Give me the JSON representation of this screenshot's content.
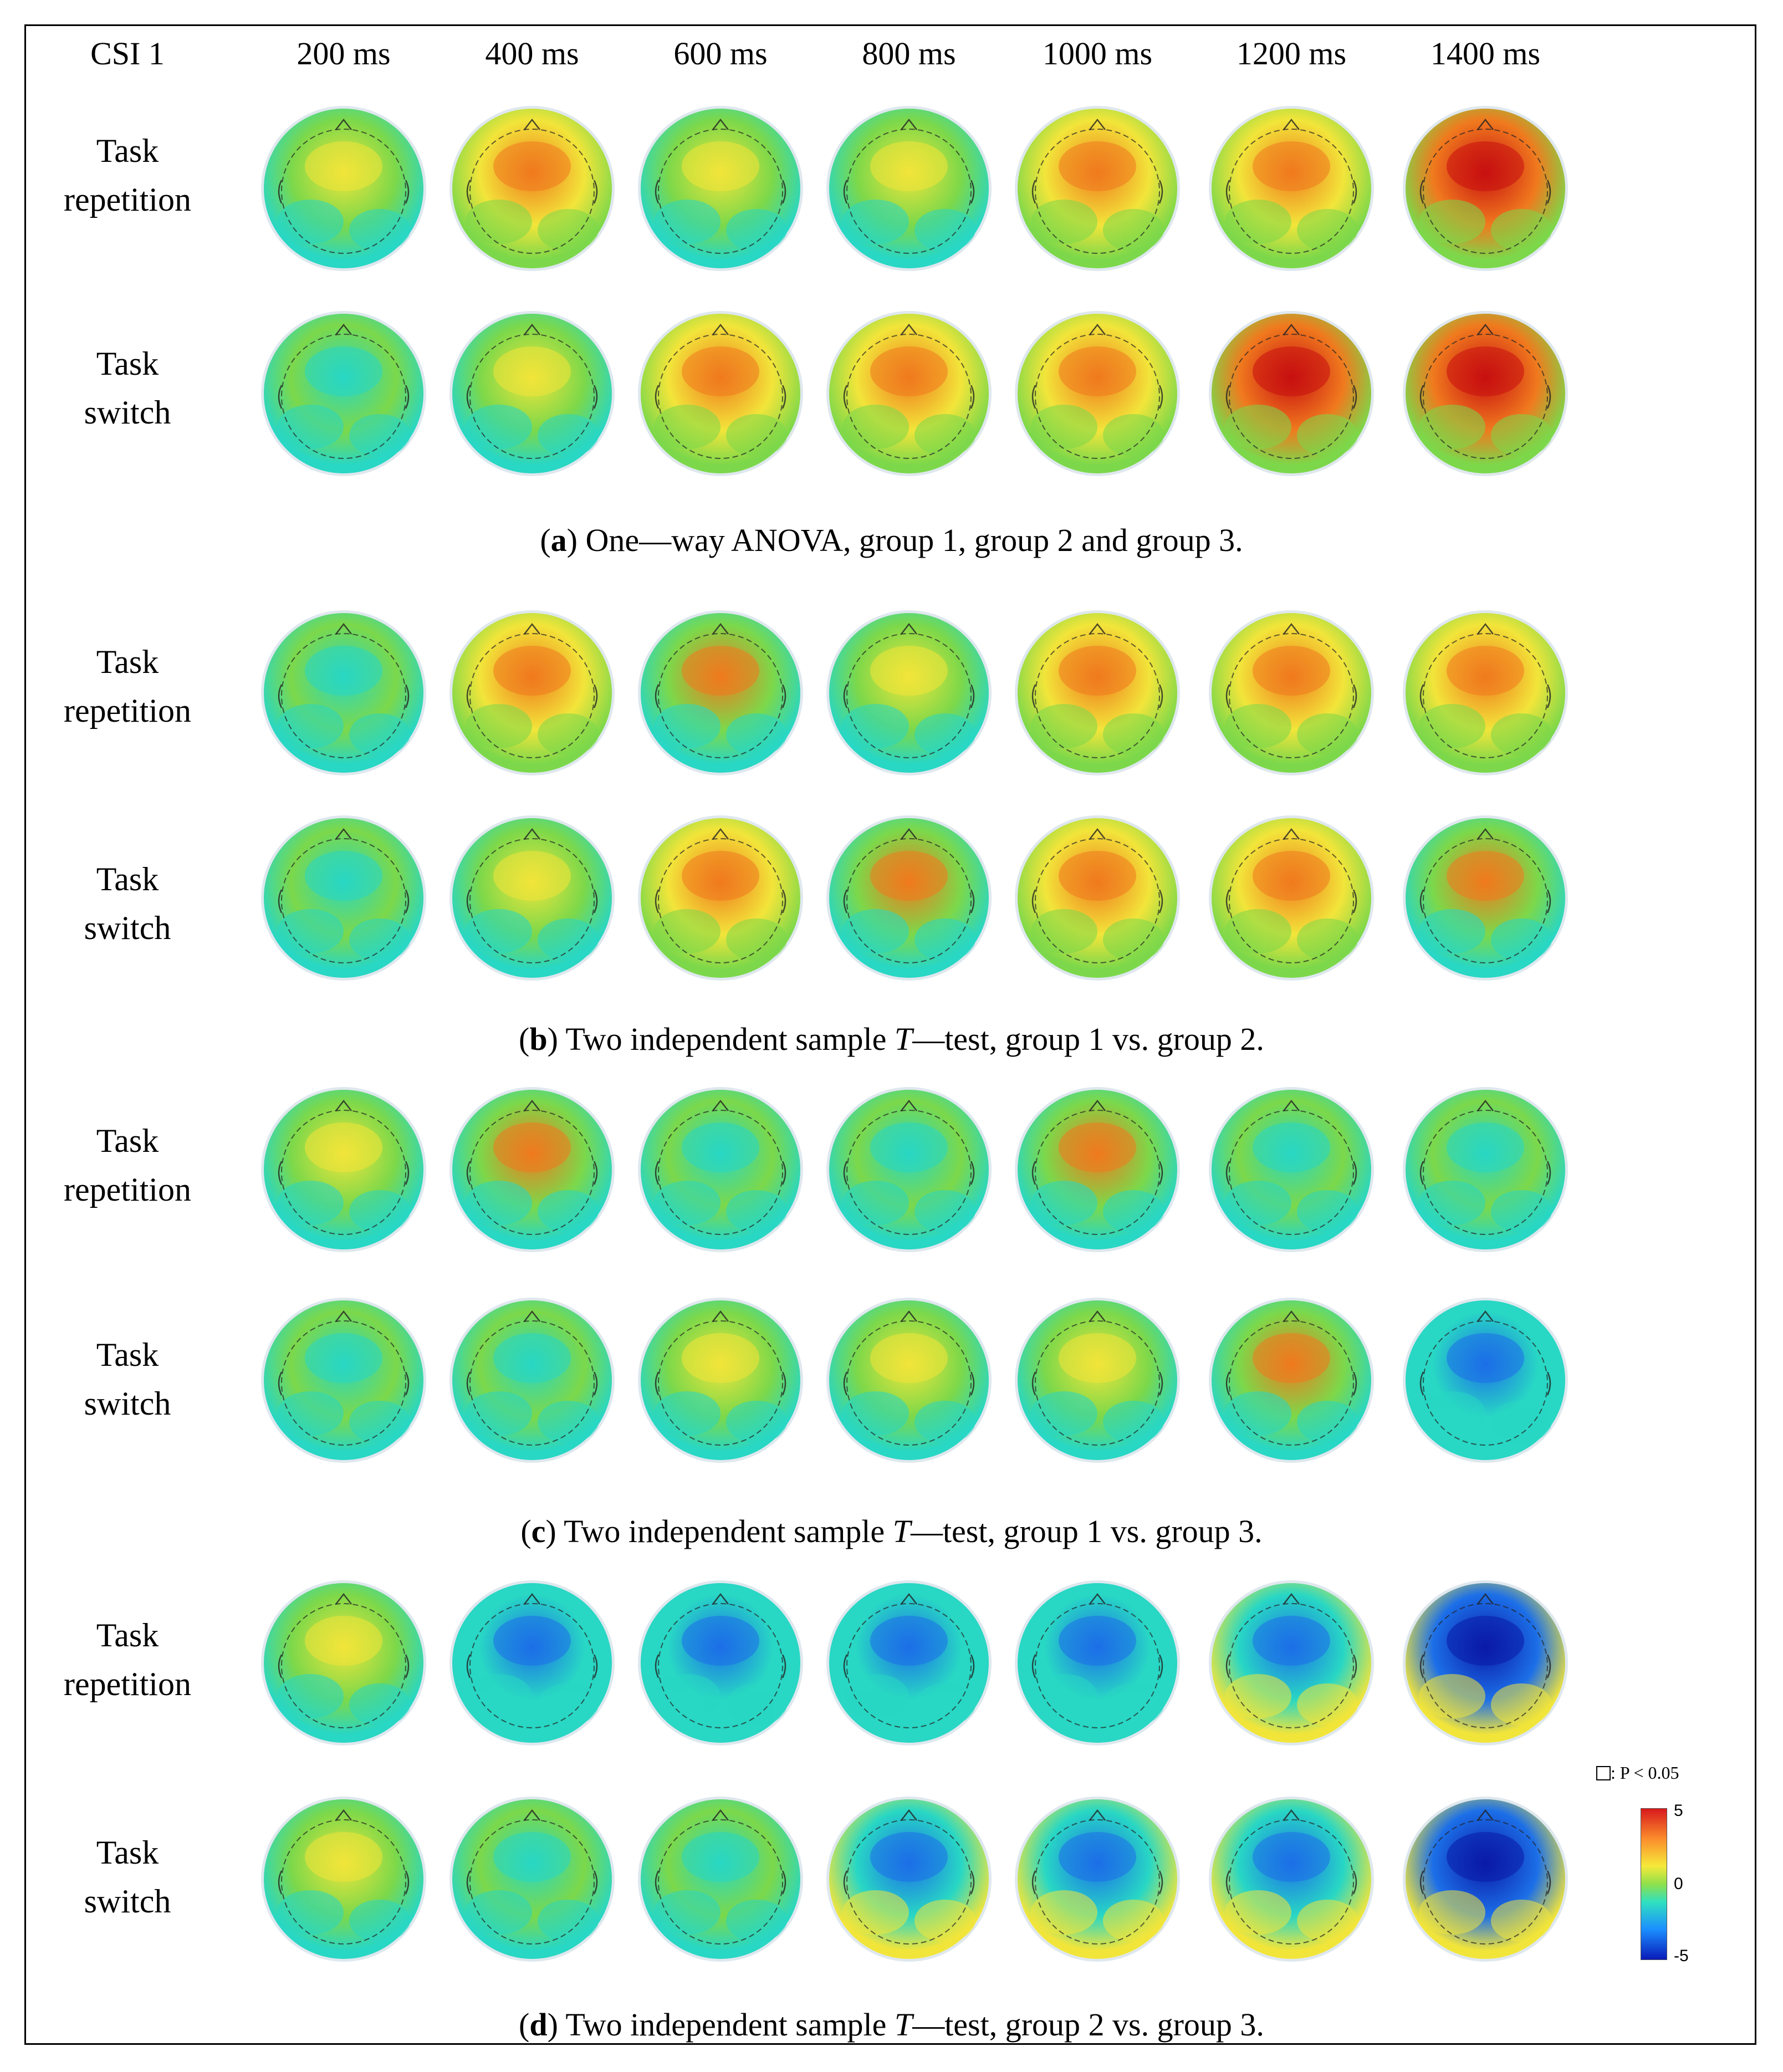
{
  "header": {
    "csi": "CSI 1",
    "times": [
      "200 ms",
      "400 ms",
      "600 ms",
      "800 ms",
      "1000 ms",
      "1200 ms",
      "1400 ms"
    ]
  },
  "row_labels": {
    "repetition": [
      "Task",
      "repetition"
    ],
    "switch": [
      "Task",
      "switch"
    ]
  },
  "panels": [
    {
      "letter": "a",
      "caption_before": "(",
      "caption_after": ") One—way ANOVA, group 1, group 2 and group 3.",
      "t_italic": "",
      "caption_tail": ""
    },
    {
      "letter": "b",
      "caption_before": "(",
      "caption_after": ") Two independent sample ",
      "t_italic": "T",
      "caption_tail": "—test, group 1 vs. group 2."
    },
    {
      "letter": "c",
      "caption_before": "(",
      "caption_after": ") Two independent sample ",
      "t_italic": "T",
      "caption_tail": "—test, group 1 vs. group 3."
    },
    {
      "letter": "d",
      "caption_before": "(",
      "caption_after": ") Two independent sample ",
      "t_italic": "T",
      "caption_tail": "—test, group 2 vs. group 3."
    }
  ],
  "maps": {
    "a": {
      "repetition": [
        0.15,
        0.6,
        0.1,
        0.1,
        0.75,
        0.7,
        1.0
      ],
      "switch": [
        0.05,
        0.1,
        0.6,
        0.7,
        0.8,
        0.9,
        1.0
      ]
    },
    "b": {
      "repetition": [
        0.0,
        0.55,
        0.3,
        0.1,
        0.65,
        0.55,
        0.6
      ],
      "switch": [
        0.0,
        0.1,
        0.55,
        0.35,
        0.7,
        0.6,
        0.45
      ]
    },
    "c": {
      "repetition": [
        0.2,
        0.25,
        0.0,
        0.0,
        0.35,
        0.05,
        0.0
      ],
      "switch": [
        0.0,
        0.0,
        0.2,
        0.1,
        0.2,
        0.25,
        -0.2
      ]
    },
    "d": {
      "repetition": [
        0.15,
        -0.15,
        -0.2,
        -0.2,
        -0.3,
        -0.35,
        -0.9
      ],
      "switch": [
        0.15,
        -0.1,
        -0.1,
        -0.7,
        -0.45,
        -0.55,
        -1.0
      ]
    }
  },
  "legend": {
    "key_text": ": P < 0.05",
    "max": "5",
    "mid": "0",
    "min": "-5"
  },
  "colors": {
    "red": "#c81010",
    "orange": "#f07a1e",
    "yellow": "#f2e53a",
    "green": "#7cd84a",
    "cyan": "#28d7c4",
    "blue": "#1c6fe8",
    "navy": "#0a1aa8"
  }
}
